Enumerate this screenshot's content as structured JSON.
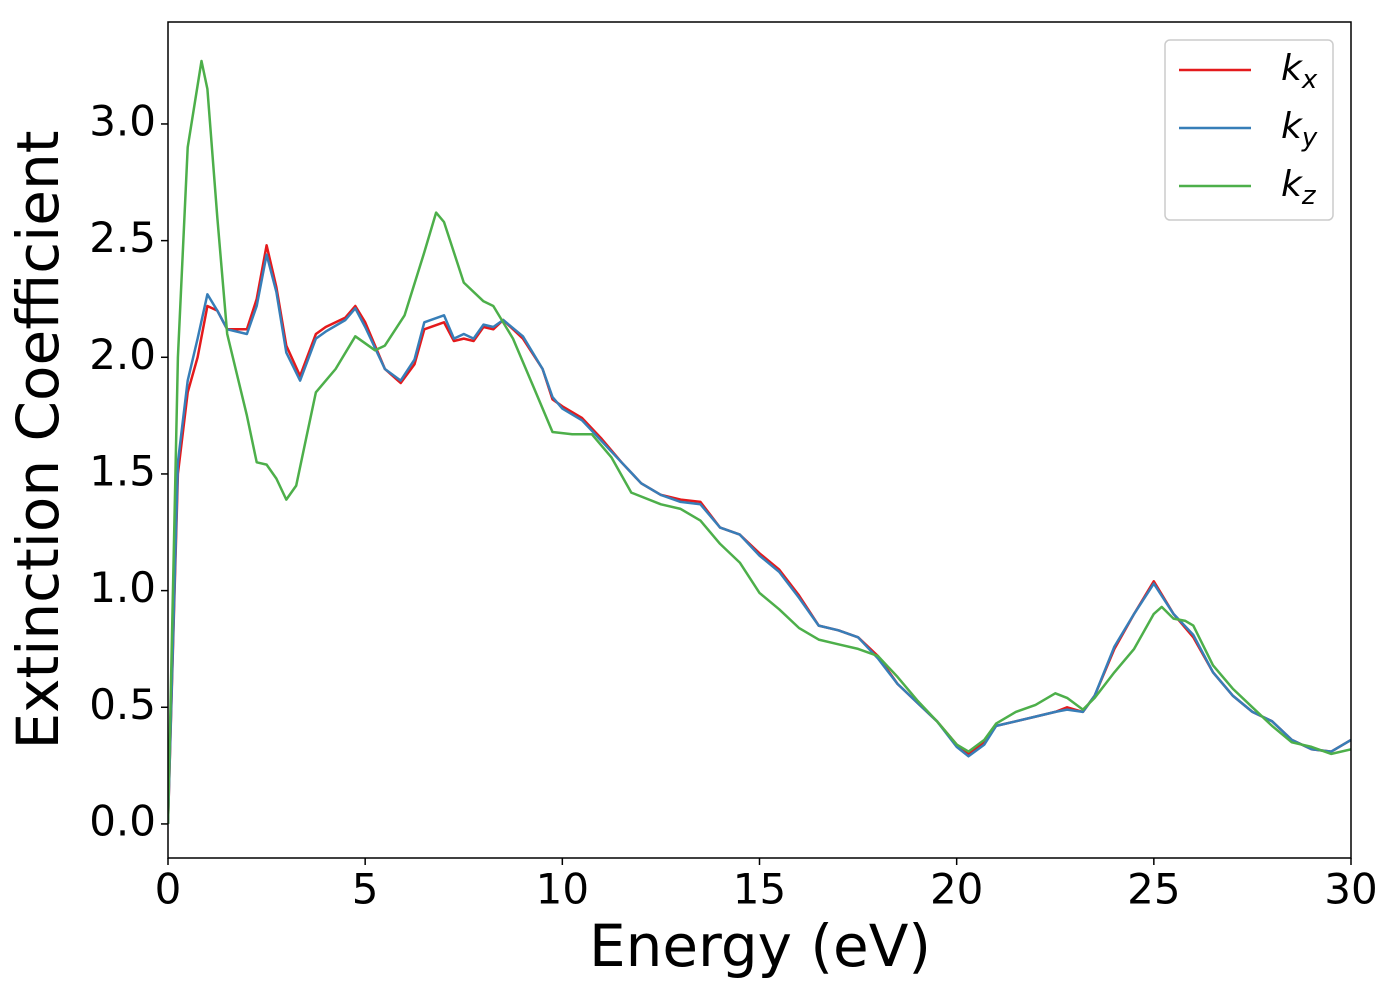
{
  "chart_data": {
    "type": "line",
    "xlabel": "Energy (eV)",
    "ylabel": "Extinction Coefficient",
    "xlim": [
      0,
      30
    ],
    "ylim": [
      -0.146,
      3.437
    ],
    "xticks": [
      0,
      5,
      10,
      15,
      20,
      25,
      30
    ],
    "yticks": [
      {
        "value": 0,
        "label": "0.0"
      },
      0.5,
      {
        "value": 1,
        "label": "1.0"
      },
      1.5,
      {
        "value": 2,
        "label": "2.0"
      },
      2.5,
      {
        "value": 3,
        "label": "3.0"
      }
    ],
    "legend": "upper right",
    "grid": false,
    "series": [
      {
        "name": "kx",
        "color": "#e41a1c",
        "x": [
          0,
          0.25,
          0.5,
          0.75,
          1.0,
          1.25,
          1.5,
          2.0,
          2.25,
          2.5,
          2.75,
          3.0,
          3.35,
          3.75,
          4.0,
          4.5,
          4.75,
          5.0,
          5.5,
          5.9,
          6.25,
          6.5,
          7.0,
          7.25,
          7.5,
          7.75,
          8.0,
          8.25,
          8.5,
          9.0,
          9.5,
          9.75,
          10,
          10.5,
          11,
          11.5,
          12,
          12.5,
          13,
          13.5,
          14,
          14.5,
          15,
          15.5,
          16,
          16.5,
          17,
          17.5,
          18,
          18.5,
          19,
          19.5,
          20,
          20.3,
          20.7,
          21,
          21.5,
          22,
          22.5,
          22.8,
          23.2,
          23.5,
          24,
          24.5,
          25,
          25.5,
          26,
          26.5,
          27,
          27.5,
          28,
          28.5,
          29,
          29.5,
          30
        ],
        "values": [
          0,
          1.5,
          1.85,
          2.0,
          2.22,
          2.2,
          2.12,
          2.12,
          2.25,
          2.48,
          2.3,
          2.05,
          1.92,
          2.1,
          2.13,
          2.17,
          2.22,
          2.15,
          1.95,
          1.89,
          1.97,
          2.12,
          2.15,
          2.07,
          2.08,
          2.07,
          2.13,
          2.12,
          2.16,
          2.08,
          1.95,
          1.82,
          1.79,
          1.74,
          1.65,
          1.55,
          1.46,
          1.41,
          1.39,
          1.38,
          1.27,
          1.24,
          1.16,
          1.09,
          0.98,
          0.85,
          0.83,
          0.8,
          0.72,
          0.6,
          0.52,
          0.44,
          0.34,
          0.3,
          0.35,
          0.42,
          0.44,
          0.46,
          0.48,
          0.5,
          0.48,
          0.55,
          0.75,
          0.9,
          1.04,
          0.9,
          0.8,
          0.65,
          0.55,
          0.48,
          0.44,
          0.36,
          0.32,
          0.31,
          0.36
        ]
      },
      {
        "name": "ky",
        "color": "#377eb8",
        "x": [
          0,
          0.25,
          0.5,
          0.75,
          1.0,
          1.25,
          1.5,
          2.0,
          2.25,
          2.5,
          2.75,
          3.0,
          3.35,
          3.75,
          4.0,
          4.5,
          4.75,
          5.0,
          5.5,
          5.9,
          6.25,
          6.5,
          7.0,
          7.25,
          7.5,
          7.75,
          8.0,
          8.25,
          8.5,
          9.0,
          9.5,
          9.75,
          10,
          10.5,
          11,
          11.5,
          12,
          12.5,
          13,
          13.5,
          14,
          14.5,
          15,
          15.5,
          16,
          16.5,
          17,
          17.5,
          18,
          18.5,
          19,
          19.5,
          20,
          20.3,
          20.7,
          21,
          21.5,
          22,
          22.5,
          22.8,
          23.2,
          23.5,
          24,
          24.5,
          25,
          25.5,
          26,
          26.5,
          27,
          27.5,
          28,
          28.5,
          29,
          29.5,
          30
        ],
        "values": [
          0,
          1.55,
          1.9,
          2.08,
          2.27,
          2.2,
          2.12,
          2.1,
          2.22,
          2.44,
          2.28,
          2.02,
          1.9,
          2.08,
          2.11,
          2.16,
          2.21,
          2.13,
          1.95,
          1.9,
          1.99,
          2.15,
          2.18,
          2.08,
          2.1,
          2.08,
          2.14,
          2.13,
          2.16,
          2.09,
          1.95,
          1.83,
          1.78,
          1.73,
          1.64,
          1.55,
          1.46,
          1.41,
          1.38,
          1.37,
          1.27,
          1.24,
          1.15,
          1.08,
          0.97,
          0.85,
          0.83,
          0.8,
          0.71,
          0.6,
          0.52,
          0.44,
          0.33,
          0.29,
          0.34,
          0.42,
          0.44,
          0.46,
          0.48,
          0.49,
          0.48,
          0.55,
          0.76,
          0.9,
          1.03,
          0.9,
          0.81,
          0.65,
          0.55,
          0.48,
          0.44,
          0.36,
          0.32,
          0.31,
          0.36
        ]
      },
      {
        "name": "kz",
        "color": "#4daf4a",
        "x": [
          0,
          0.25,
          0.5,
          0.85,
          1.0,
          1.25,
          1.5,
          2.0,
          2.25,
          2.5,
          2.75,
          3.0,
          3.25,
          3.5,
          3.75,
          4.25,
          4.75,
          5.0,
          5.25,
          5.5,
          6.0,
          6.5,
          6.8,
          7.0,
          7.5,
          8.0,
          8.25,
          8.75,
          9.25,
          9.75,
          10.25,
          10.75,
          11.25,
          11.75,
          12.5,
          13,
          13.5,
          14,
          14.5,
          15,
          15.5,
          16,
          16.5,
          17,
          17.5,
          18,
          18.5,
          19,
          19.5,
          20,
          20.3,
          20.7,
          21,
          21.5,
          22,
          22.5,
          22.8,
          23.2,
          23.5,
          24,
          24.5,
          25,
          25.2,
          25.5,
          25.8,
          26,
          26.5,
          27,
          27.5,
          28,
          28.5,
          29,
          29.5,
          30
        ],
        "values": [
          0,
          2.0,
          2.9,
          3.27,
          3.15,
          2.6,
          2.1,
          1.75,
          1.55,
          1.54,
          1.48,
          1.39,
          1.45,
          1.65,
          1.85,
          1.95,
          2.09,
          2.06,
          2.03,
          2.05,
          2.18,
          2.45,
          2.62,
          2.58,
          2.32,
          2.24,
          2.22,
          2.08,
          1.88,
          1.68,
          1.67,
          1.67,
          1.57,
          1.42,
          1.37,
          1.35,
          1.3,
          1.2,
          1.12,
          0.99,
          0.92,
          0.84,
          0.79,
          0.77,
          0.75,
          0.72,
          0.63,
          0.53,
          0.44,
          0.34,
          0.31,
          0.36,
          0.43,
          0.48,
          0.51,
          0.56,
          0.54,
          0.49,
          0.54,
          0.65,
          0.75,
          0.9,
          0.93,
          0.88,
          0.87,
          0.85,
          0.68,
          0.58,
          0.5,
          0.42,
          0.35,
          0.33,
          0.3,
          0.32
        ]
      }
    ]
  }
}
